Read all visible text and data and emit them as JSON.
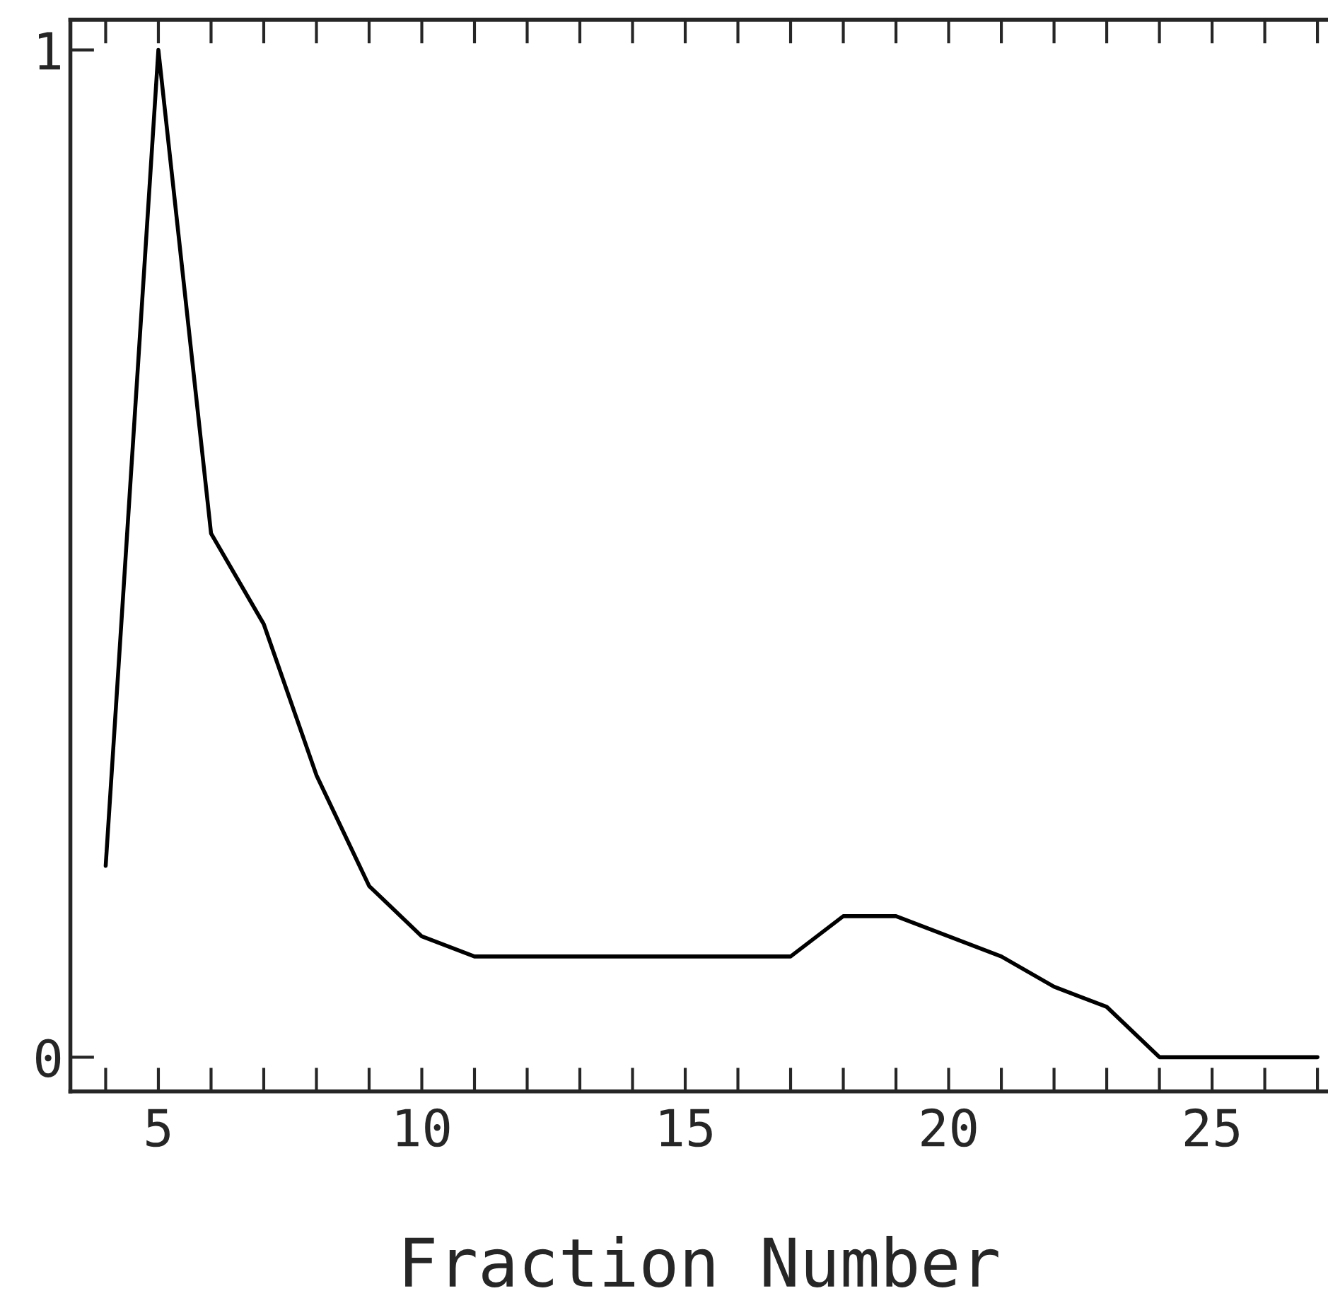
{
  "chart_data": {
    "type": "line",
    "xlabel": "Fraction Number",
    "x": [
      4,
      5,
      6,
      7,
      8,
      9,
      10,
      11,
      12,
      13,
      14,
      15,
      16,
      17,
      18,
      19,
      20,
      21,
      22,
      23,
      24,
      25,
      26,
      27
    ],
    "series": [
      {
        "color": "#000000",
        "values": [
          0.19,
          1.0,
          0.52,
          0.43,
          0.28,
          0.17,
          0.12,
          0.1,
          0.1,
          0.1,
          0.1,
          0.1,
          0.1,
          0.1,
          0.14,
          0.14,
          0.12,
          0.1,
          0.07,
          0.05,
          0.0,
          0.0,
          0.0,
          0.0
        ]
      }
    ],
    "xlim": [
      3.33,
      27.2
    ],
    "ylim": [
      -0.034,
      1.03
    ],
    "xticks": [
      5,
      10,
      15,
      20,
      25
    ],
    "yticks": [
      {
        "value": 0,
        "label": "0"
      },
      {
        "value": 1,
        "label": "1"
      }
    ],
    "grid": false,
    "legend": false,
    "marker": "none",
    "line_style": "solid"
  }
}
